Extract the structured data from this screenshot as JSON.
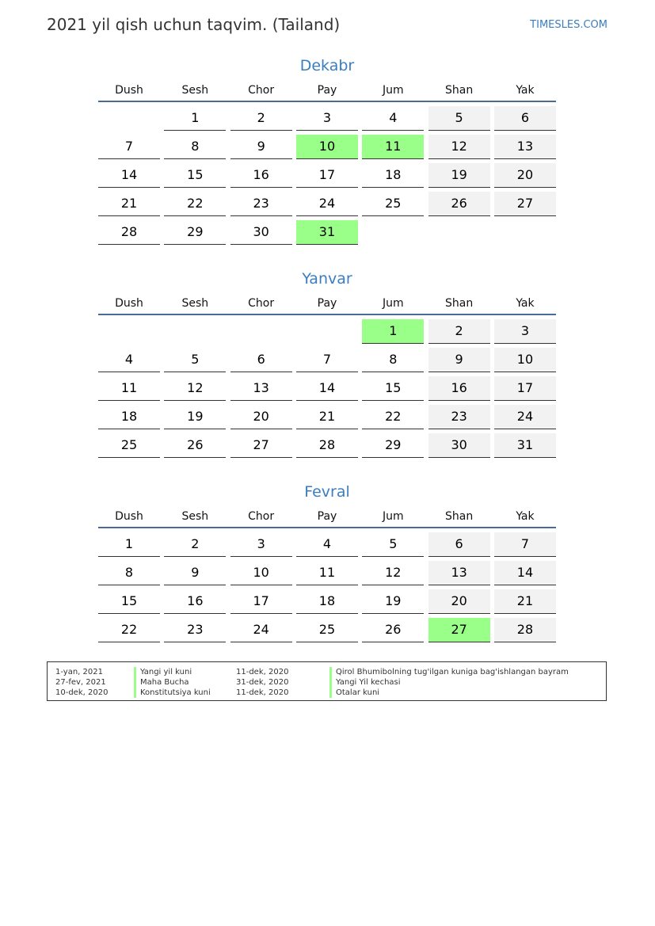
{
  "header": {
    "title": "2021 yil qish uchun taqvim. (Tailand)",
    "brand": "TIMESLES.COM"
  },
  "weekdays": [
    "Dush",
    "Sesh",
    "Chor",
    "Pay",
    "Jum",
    "Shan",
    "Yak"
  ],
  "colors": {
    "accent": "#3a7ec0",
    "holiday": "#99ff88",
    "weekend": "#f2f2f2"
  },
  "months": [
    {
      "name": "Dekabr",
      "weeks": [
        [
          null,
          1,
          2,
          3,
          4,
          5,
          6
        ],
        [
          7,
          8,
          9,
          10,
          11,
          12,
          13
        ],
        [
          14,
          15,
          16,
          17,
          18,
          19,
          20
        ],
        [
          21,
          22,
          23,
          24,
          25,
          26,
          27
        ],
        [
          28,
          29,
          30,
          31,
          null,
          null,
          null
        ]
      ],
      "holidays": [
        10,
        11,
        31
      ]
    },
    {
      "name": "Yanvar",
      "weeks": [
        [
          null,
          null,
          null,
          null,
          1,
          2,
          3
        ],
        [
          4,
          5,
          6,
          7,
          8,
          9,
          10
        ],
        [
          11,
          12,
          13,
          14,
          15,
          16,
          17
        ],
        [
          18,
          19,
          20,
          21,
          22,
          23,
          24
        ],
        [
          25,
          26,
          27,
          28,
          29,
          30,
          31
        ]
      ],
      "holidays": [
        1
      ]
    },
    {
      "name": "Fevral",
      "weeks": [
        [
          1,
          2,
          3,
          4,
          5,
          6,
          7
        ],
        [
          8,
          9,
          10,
          11,
          12,
          13,
          14
        ],
        [
          15,
          16,
          17,
          18,
          19,
          20,
          21
        ],
        [
          22,
          23,
          24,
          25,
          26,
          27,
          28
        ]
      ],
      "holidays": [
        27
      ]
    }
  ],
  "legend": [
    {
      "date1": "1-yan, 2021",
      "name1": "Yangi yil kuni",
      "date2": "11-dek, 2020",
      "name2": "Qirol Bhumibolning tug'ilgan kuniga bag'ishlangan bayram"
    },
    {
      "date1": "27-fev, 2021",
      "name1": "Maha Bucha",
      "date2": "31-dek, 2020",
      "name2": "Yangi Yil kechasi"
    },
    {
      "date1": "10-dek, 2020",
      "name1": "Konstitutsiya kuni",
      "date2": "11-dek, 2020",
      "name2": "Otalar kuni"
    }
  ]
}
